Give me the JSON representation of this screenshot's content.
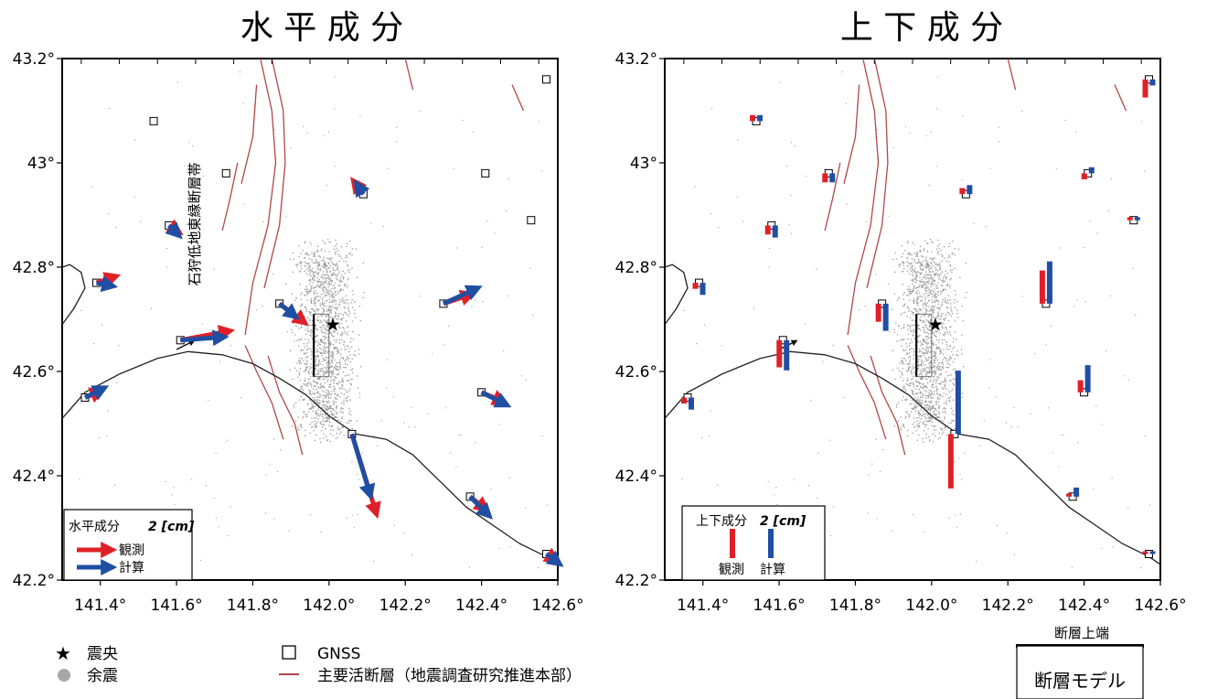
{
  "panels": [
    {
      "id": "horizontal",
      "title": "水 平 成 分",
      "fault_zone_label": "石狩低地東縁断層帯",
      "legend": {
        "title": "水平成分",
        "scale": "2 [cm]",
        "observed": "観測",
        "computed": "計算"
      }
    },
    {
      "id": "vertical",
      "title": "上 下 成 分",
      "legend": {
        "title": "上下成分",
        "scale": "2 [cm]",
        "observed": "観測",
        "computed": "計算"
      }
    }
  ],
  "axes": {
    "x_ticks": [
      "141.4°",
      "141.6°",
      "141.8°",
      "142.0°",
      "142.2°",
      "142.4°",
      "142.6°"
    ],
    "y_ticks": [
      "42.2°",
      "42.4°",
      "42.6°",
      "42.8°",
      "43°",
      "43.2°"
    ],
    "xlim": [
      141.3,
      142.6
    ],
    "ylim": [
      42.2,
      43.2
    ]
  },
  "epicenter": {
    "lon": 142.01,
    "lat": 42.69
  },
  "fault_model": {
    "lon": 141.98,
    "lat_top": 42.71,
    "lat_bottom": 42.59,
    "width_deg": 0.04
  },
  "gnss_stations": [
    {
      "lon": 141.54,
      "lat": 43.08,
      "h_obs": null,
      "h_calc": null,
      "v_obs": 0.2,
      "v_calc": 0.2
    },
    {
      "lon": 141.73,
      "lat": 42.98,
      "h_obs": null,
      "h_calc": null,
      "v_obs": -0.3,
      "v_calc": -0.3
    },
    {
      "lon": 142.09,
      "lat": 42.94,
      "h_obs": [
        -0.3,
        0.4
      ],
      "h_calc": [
        -0.2,
        0.3
      ],
      "v_obs": 0.2,
      "v_calc": 0.3
    },
    {
      "lon": 142.41,
      "lat": 42.98,
      "h_obs": null,
      "h_calc": null,
      "v_obs": -0.2,
      "v_calc": 0.2
    },
    {
      "lon": 142.57,
      "lat": 43.16,
      "h_obs": null,
      "h_calc": null,
      "v_obs": -0.6,
      "v_calc": -0.2
    },
    {
      "lon": 142.53,
      "lat": 42.89,
      "h_obs": null,
      "h_calc": null,
      "v_obs": 0.1,
      "v_calc": 0.1
    },
    {
      "lon": 141.58,
      "lat": 42.88,
      "h_obs": [
        0.3,
        -0.2
      ],
      "h_calc": [
        0.3,
        -0.3
      ],
      "v_obs": -0.3,
      "v_calc": -0.4
    },
    {
      "lon": 141.39,
      "lat": 42.77,
      "h_obs": [
        0.6,
        0.2
      ],
      "h_calc": [
        0.5,
        -0.1
      ],
      "v_obs": -0.2,
      "v_calc": -0.4
    },
    {
      "lon": 141.87,
      "lat": 42.73,
      "h_obs": [
        0.8,
        -0.6
      ],
      "h_calc": [
        0.5,
        -0.4
      ],
      "v_obs": -0.6,
      "v_calc": -0.9
    },
    {
      "lon": 142.3,
      "lat": 42.73,
      "h_obs": [
        0.9,
        0.3
      ],
      "h_calc": [
        1.1,
        0.5
      ],
      "v_obs": 1.1,
      "v_calc": 1.4
    },
    {
      "lon": 141.61,
      "lat": 42.66,
      "h_obs": [
        1.6,
        0.3
      ],
      "h_calc": [
        1.4,
        0.1
      ],
      "v_obs": -0.9,
      "v_calc": -1.0
    },
    {
      "lon": 141.36,
      "lat": 42.55,
      "h_obs": [
        0.5,
        0.2
      ],
      "h_calc": [
        0.6,
        0.3
      ],
      "v_obs": -0.2,
      "v_calc": -0.4
    },
    {
      "lon": 142.4,
      "lat": 42.56,
      "h_obs": [
        0.7,
        -0.3
      ],
      "h_calc": [
        0.8,
        -0.4
      ],
      "v_obs": 0.4,
      "v_calc": 0.9
    },
    {
      "lon": 142.06,
      "lat": 42.48,
      "h_obs": [
        0.8,
        -2.6
      ],
      "h_calc": [
        0.6,
        -2.0
      ],
      "v_obs": -1.8,
      "v_calc": 2.1
    },
    {
      "lon": 142.37,
      "lat": 42.36,
      "h_obs": [
        0.5,
        -0.4
      ],
      "h_calc": [
        0.6,
        -0.6
      ],
      "v_obs": 0.1,
      "v_calc": 0.3
    },
    {
      "lon": 142.57,
      "lat": 42.25,
      "h_obs": [
        0.3,
        -0.2
      ],
      "h_calc": [
        0.4,
        -0.3
      ],
      "v_obs": 0.0,
      "v_calc": 0.0
    }
  ],
  "legend_bottom": {
    "epicenter": "震央",
    "aftershock": "余震",
    "gnss": "GNSS",
    "active_fault": "主要活断層（地震調査研究推進本部）",
    "fault_top": "断層上端",
    "fault_model": "断層モデル"
  },
  "colors": {
    "observed": "#e02028",
    "computed": "#1f4ea3",
    "fault_line": "#b0474a",
    "coast": "#222222",
    "aftershock": "#9a9a9a"
  }
}
